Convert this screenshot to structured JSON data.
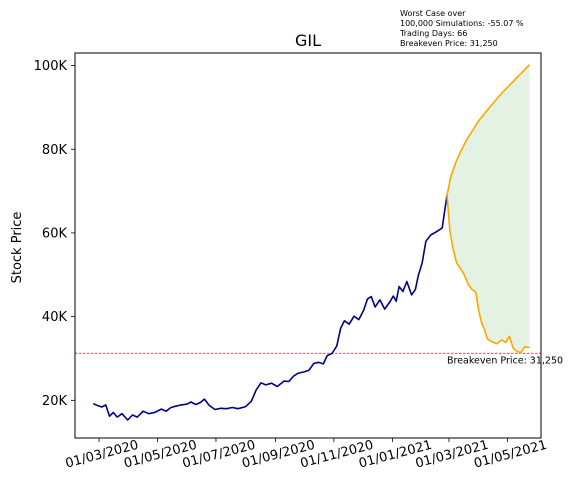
{
  "chart_data": {
    "type": "line",
    "title": "GIL",
    "xlabel": "",
    "ylabel": "Stock Price",
    "x_tick_labels": [
      "01/03/2020",
      "01/05/2020",
      "01/07/2020",
      "01/09/2020",
      "01/11/2020",
      "01/01/2021",
      "01/03/2021",
      "01/05/2021"
    ],
    "x_ticks": [
      "2020-03-01",
      "2020-05-01",
      "2020-07-01",
      "2020-09-01",
      "2020-11-01",
      "2021-01-01",
      "2021-03-01",
      "2021-05-01"
    ],
    "y_tick_labels": [
      "20K",
      "40K",
      "60K",
      "80K",
      "100K"
    ],
    "y_ticks": [
      20000,
      40000,
      60000,
      80000,
      100000
    ],
    "xlim": [
      "2020-02-05",
      "2021-06-05"
    ],
    "ylim": [
      11000,
      103000
    ],
    "grid": false,
    "historical": {
      "color": "#00008b",
      "points": [
        [
          "2020-02-24",
          19200
        ],
        [
          "2020-02-28",
          18800
        ],
        [
          "2020-03-04",
          18400
        ],
        [
          "2020-03-08",
          18900
        ],
        [
          "2020-03-12",
          16200
        ],
        [
          "2020-03-16",
          17100
        ],
        [
          "2020-03-20",
          16000
        ],
        [
          "2020-03-25",
          16800
        ],
        [
          "2020-03-31",
          15300
        ],
        [
          "2020-04-05",
          16500
        ],
        [
          "2020-04-10",
          16000
        ],
        [
          "2020-04-16",
          17400
        ],
        [
          "2020-04-22",
          16800
        ],
        [
          "2020-04-28",
          17100
        ],
        [
          "2020-05-05",
          17900
        ],
        [
          "2020-05-10",
          17400
        ],
        [
          "2020-05-15",
          18300
        ],
        [
          "2020-05-20",
          18600
        ],
        [
          "2020-05-26",
          18900
        ],
        [
          "2020-06-01",
          19100
        ],
        [
          "2020-06-05",
          19600
        ],
        [
          "2020-06-10",
          19000
        ],
        [
          "2020-06-15",
          19500
        ],
        [
          "2020-06-19",
          20300
        ],
        [
          "2020-06-24",
          18800
        ],
        [
          "2020-06-30",
          17800
        ],
        [
          "2020-07-06",
          18100
        ],
        [
          "2020-07-12",
          18000
        ],
        [
          "2020-07-18",
          18300
        ],
        [
          "2020-07-24",
          18000
        ],
        [
          "2020-08-01",
          18500
        ],
        [
          "2020-08-07",
          19800
        ],
        [
          "2020-08-12",
          22500
        ],
        [
          "2020-08-17",
          24200
        ],
        [
          "2020-08-22",
          23700
        ],
        [
          "2020-08-28",
          24100
        ],
        [
          "2020-09-03",
          23300
        ],
        [
          "2020-09-10",
          24600
        ],
        [
          "2020-09-15",
          24500
        ],
        [
          "2020-09-20",
          25800
        ],
        [
          "2020-09-25",
          26500
        ],
        [
          "2020-10-01",
          26800
        ],
        [
          "2020-10-06",
          27200
        ],
        [
          "2020-10-11",
          28800
        ],
        [
          "2020-10-16",
          29100
        ],
        [
          "2020-10-21",
          28700
        ],
        [
          "2020-10-25",
          30700
        ],
        [
          "2020-10-30",
          31200
        ],
        [
          "2020-11-04",
          33000
        ],
        [
          "2020-11-08",
          37200
        ],
        [
          "2020-11-12",
          39000
        ],
        [
          "2020-11-17",
          38200
        ],
        [
          "2020-11-22",
          40100
        ],
        [
          "2020-11-27",
          39300
        ],
        [
          "2020-12-02",
          41500
        ],
        [
          "2020-12-06",
          44200
        ],
        [
          "2020-12-10",
          44800
        ],
        [
          "2020-12-14",
          42300
        ],
        [
          "2020-12-19",
          44000
        ],
        [
          "2020-12-24",
          41800
        ],
        [
          "2020-12-29",
          43400
        ],
        [
          "2021-01-02",
          44900
        ],
        [
          "2021-01-05",
          43700
        ],
        [
          "2021-01-08",
          47200
        ],
        [
          "2021-01-12",
          46000
        ],
        [
          "2021-01-16",
          48400
        ],
        [
          "2021-01-21",
          45200
        ],
        [
          "2021-01-25",
          46500
        ],
        [
          "2021-01-28",
          49800
        ],
        [
          "2021-02-01",
          52800
        ],
        [
          "2021-02-05",
          58000
        ],
        [
          "2021-02-10",
          59500
        ],
        [
          "2021-02-16",
          60300
        ],
        [
          "2021-02-22",
          61200
        ],
        [
          "2021-02-27",
          69000
        ]
      ]
    },
    "upper_simulation": {
      "color": "#ffa500",
      "points": [
        [
          "2021-02-27",
          69000
        ],
        [
          "2021-03-03",
          73500
        ],
        [
          "2021-03-08",
          76800
        ],
        [
          "2021-03-14",
          79800
        ],
        [
          "2021-03-20",
          82500
        ],
        [
          "2021-03-26",
          84600
        ],
        [
          "2021-04-01",
          86800
        ],
        [
          "2021-04-07",
          88500
        ],
        [
          "2021-04-13",
          90200
        ],
        [
          "2021-04-19",
          91800
        ],
        [
          "2021-04-25",
          93400
        ],
        [
          "2021-05-01",
          94800
        ],
        [
          "2021-05-07",
          96200
        ],
        [
          "2021-05-13",
          97600
        ],
        [
          "2021-05-19",
          99000
        ],
        [
          "2021-05-24",
          100200
        ]
      ]
    },
    "lower_simulation": {
      "color": "#ffa500",
      "points": [
        [
          "2021-02-27",
          69000
        ],
        [
          "2021-03-02",
          60500
        ],
        [
          "2021-03-05",
          56500
        ],
        [
          "2021-03-09",
          52800
        ],
        [
          "2021-03-13",
          51500
        ],
        [
          "2021-03-17",
          50000
        ],
        [
          "2021-03-21",
          47800
        ],
        [
          "2021-03-25",
          46500
        ],
        [
          "2021-03-29",
          45800
        ],
        [
          "2021-04-01",
          41500
        ],
        [
          "2021-04-04",
          38500
        ],
        [
          "2021-04-07",
          37000
        ],
        [
          "2021-04-10",
          34700
        ],
        [
          "2021-04-15",
          34000
        ],
        [
          "2021-04-20",
          33500
        ],
        [
          "2021-04-25",
          34500
        ],
        [
          "2021-04-29",
          33800
        ],
        [
          "2021-05-03",
          35300
        ],
        [
          "2021-05-07",
          32400
        ],
        [
          "2021-05-11",
          31700
        ],
        [
          "2021-05-15",
          31400
        ],
        [
          "2021-05-19",
          32800
        ],
        [
          "2021-05-24",
          32600
        ]
      ]
    },
    "fill_color": "#c8e6c8",
    "breakeven": {
      "value": 31250,
      "color": "#ff0000",
      "label": "Breakeven Price: 31,250"
    },
    "annotation": [
      "Worst Case over",
      "100,000 Simulations: -55.07 %",
      "Trading Days: 66",
      "Breakeven Price: 31,250"
    ]
  }
}
